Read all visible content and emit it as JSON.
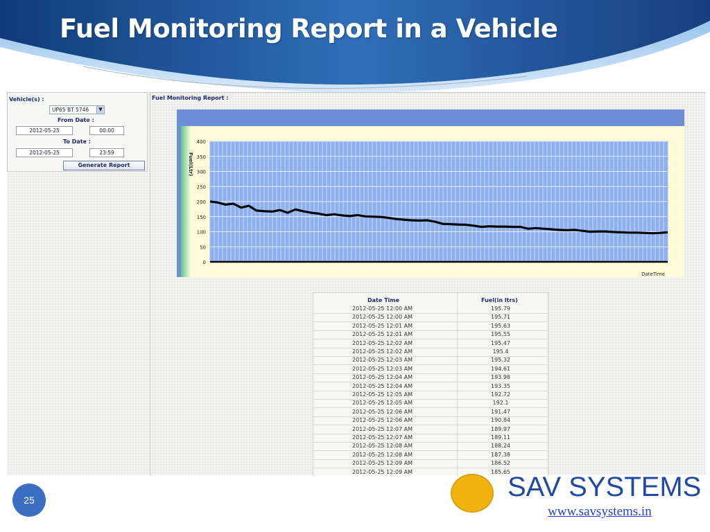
{
  "slide": {
    "title": "Fuel Monitoring Report in a Vehicle",
    "page_number": "25",
    "brand_name": "SAV SYSTEMS",
    "brand_url": "www.savsystems.in",
    "colors": {
      "header_dark": "#1b4f8c",
      "header_light": "#5d9bd8",
      "brand": "#1f4aa0",
      "logo": "#f2b310"
    }
  },
  "filter": {
    "vehicle_label": "Vehicle(s) :",
    "vehicle_value": "UP65 BT 5746",
    "from_label": "From Date :",
    "from_date": "2012-05-25",
    "from_time": "00:00",
    "to_label": "To Date :",
    "to_date": "2012-05-25",
    "to_time": "23:59",
    "generate_label": "Generate Report"
  },
  "report": {
    "title": "Fuel Monitoring Report :"
  },
  "chart_data": {
    "type": "line",
    "ylabel": "Fuel(Ltr)",
    "xlabel": "DateTime",
    "ylim": [
      0,
      400
    ],
    "yticks": [
      400,
      350,
      300,
      250,
      200,
      150,
      100,
      50,
      0
    ],
    "grid": true,
    "series": [
      {
        "values": [
          200,
          197,
          190,
          193,
          180,
          186,
          170,
          168,
          167,
          172,
          163,
          174,
          168,
          163,
          160,
          155,
          158,
          154,
          152,
          155,
          151,
          150,
          149,
          146,
          142,
          140,
          138,
          137,
          138,
          133,
          126,
          125,
          124,
          123,
          120,
          116,
          118,
          117,
          117,
          116,
          116,
          110,
          112,
          110,
          108,
          106,
          105,
          106,
          103,
          100,
          101,
          101,
          99,
          98,
          97,
          97,
          96,
          95,
          96,
          98
        ]
      }
    ]
  },
  "table": {
    "headers": {
      "datetime": "Date Time",
      "fuel": "Fuel(in ltrs)"
    },
    "rows": [
      [
        "2012-05-25 12:00 AM",
        "195.79"
      ],
      [
        "2012-05-25 12:00 AM",
        "195.71"
      ],
      [
        "2012-05-25 12:01 AM",
        "195.63"
      ],
      [
        "2012-05-25 12:01 AM",
        "195.55"
      ],
      [
        "2012-05-25 12:02 AM",
        "195.47"
      ],
      [
        "2012-05-25 12:02 AM",
        "195.4"
      ],
      [
        "2012-05-25 12:03 AM",
        "195.32"
      ],
      [
        "2012-05-25 12:03 AM",
        "194.61"
      ],
      [
        "2012-05-25 12:04 AM",
        "193.98"
      ],
      [
        "2012-05-25 12:04 AM",
        "193.35"
      ],
      [
        "2012-05-25 12:05 AM",
        "192.72"
      ],
      [
        "2012-05-25 12:05 AM",
        "192.1"
      ],
      [
        "2012-05-25 12:06 AM",
        "191.47"
      ],
      [
        "2012-05-25 12:06 AM",
        "190.84"
      ],
      [
        "2012-05-25 12:07 AM",
        "189.97"
      ],
      [
        "2012-05-25 12:07 AM",
        "189.11"
      ],
      [
        "2012-05-25 12:08 AM",
        "188.24"
      ],
      [
        "2012-05-25 12:08 AM",
        "187.38"
      ],
      [
        "2012-05-25 12:09 AM",
        "186.52"
      ],
      [
        "2012-05-25 12:09 AM",
        "185.65"
      ]
    ]
  }
}
